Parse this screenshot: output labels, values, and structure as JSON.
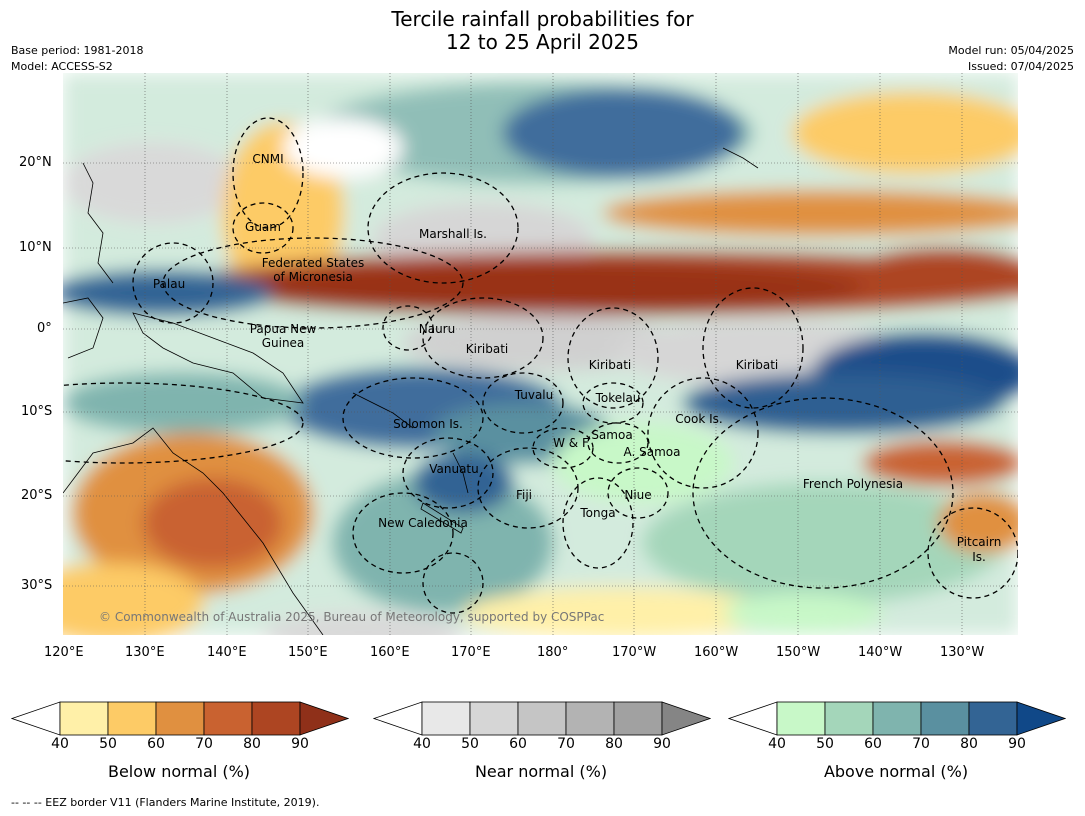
{
  "title_line1": "Tercile rainfall probabilities for",
  "title_line2": "12 to 25 April 2025",
  "base_period": "Base period: 1981-2018",
  "model": "Model: ACCESS-S2",
  "model_run": "Model run: 05/04/2025",
  "issued": "Issued: 07/04/2025",
  "copyright": "© Commonwealth of Australia 2025, Bureau of Meteorology, supported by COSPPac",
  "footnote": "--  --  -- EEZ border V11 (Flanders Marine Institute, 2019).",
  "lat_ticks": [
    "20°N",
    "10°N",
    "0°",
    "10°S",
    "20°S",
    "30°S"
  ],
  "lon_ticks": [
    "120°E",
    "130°E",
    "140°E",
    "150°E",
    "160°E",
    "170°E",
    "180°",
    "170°W",
    "160°W",
    "150°W",
    "140°W",
    "130°W"
  ],
  "regions": {
    "cnmi": "CNMI",
    "guam": "Guam",
    "marshall": "Marshall Is.",
    "fsm1": "Federated States",
    "fsm2": "of Micronesia",
    "palau": "Palau",
    "png1": "Papua New",
    "png2": "Guinea",
    "nauru": "Nauru",
    "kiribati_w": "Kiribati",
    "kiribati_c": "Kiribati",
    "kiribati_e": "Kiribati",
    "tuvalu": "Tuvalu",
    "tokelau": "Tokelau",
    "solomon": "Solomon Is.",
    "samoa": "Samoa",
    "wf": "W & F",
    "asamoa": "A. Samoa",
    "cook": "Cook Is.",
    "vanuatu": "Vanuatu",
    "fiji": "Fiji",
    "niue": "Niue",
    "french_poly": "French Polynesia",
    "tonga": "Tonga",
    "new_caledonia": "New Caledonia",
    "pitcairn1": "Pitcairn",
    "pitcairn2": "Is."
  },
  "colorbars": [
    {
      "label": "Below normal (%)",
      "ticks": [
        "40",
        "50",
        "60",
        "70",
        "80",
        "90"
      ],
      "colors": [
        "#fff0a8",
        "#fdcb66",
        "#e09040",
        "#c96230",
        "#ad4522"
      ],
      "extend": "#8f3019"
    },
    {
      "label": "Near normal (%)",
      "ticks": [
        "40",
        "50",
        "60",
        "70",
        "80",
        "90"
      ],
      "colors": [
        "#e8e8e8",
        "#d6d6d6",
        "#c5c5c5",
        "#b3b3b3",
        "#a1a1a1"
      ],
      "extend": "#858585"
    },
    {
      "label": "Above normal (%)",
      "ticks": [
        "40",
        "50",
        "60",
        "70",
        "80",
        "90"
      ],
      "colors": [
        "#c8f8c8",
        "#a4d6ba",
        "#7fb4ae",
        "#5a90a0",
        "#336494"
      ],
      "extend": "#104888"
    }
  ],
  "colors": {
    "below_strong": "#993319",
    "above_strong": "#124c86",
    "near": "#cfcfcf"
  }
}
